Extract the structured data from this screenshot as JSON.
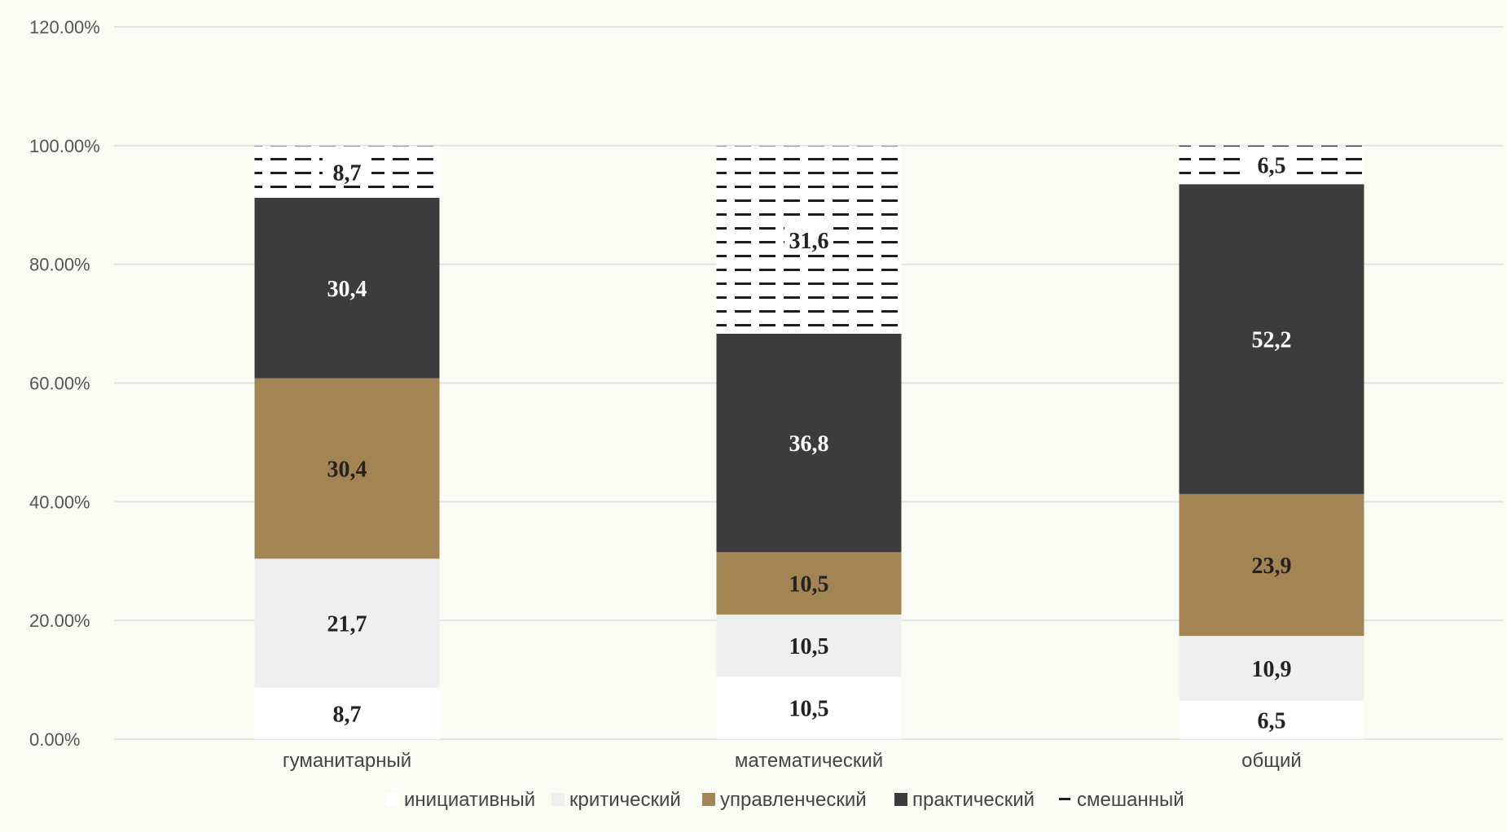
{
  "chart_data": {
    "type": "bar",
    "stacked": true,
    "categories": [
      "гуманитарный",
      "математический",
      "общий"
    ],
    "series": [
      {
        "name": "инициативный",
        "values": [
          8.7,
          10.5,
          6.5
        ],
        "labels": [
          "8,7",
          "10,5",
          "6,5"
        ],
        "color": "#ffffff",
        "pattern": "none"
      },
      {
        "name": "критический",
        "values": [
          21.7,
          10.5,
          10.9
        ],
        "labels": [
          "21,7",
          "10,5",
          "10,9"
        ],
        "color": "#efefef",
        "pattern": "none"
      },
      {
        "name": "управленческий",
        "values": [
          30.4,
          10.5,
          23.9
        ],
        "labels": [
          "30,4",
          "10,5",
          "23,9"
        ],
        "color": "#a28552",
        "pattern": "none"
      },
      {
        "name": "практический",
        "values": [
          30.4,
          36.8,
          52.2
        ],
        "labels": [
          "30,4",
          "36,8",
          "52,2"
        ],
        "color": "#3c3c3c",
        "pattern": "none"
      },
      {
        "name": "смешанный",
        "values": [
          8.7,
          31.6,
          6.5
        ],
        "labels": [
          "8,7",
          "31,6",
          "6,5"
        ],
        "color": "#ffffff",
        "pattern": "dashes"
      }
    ],
    "yticks": [
      "0.00%",
      "20.00%",
      "40.00%",
      "60.00%",
      "80.00%",
      "100.00%",
      "120.00%"
    ],
    "ylim": [
      0,
      120
    ],
    "grid": true,
    "legend_position": "bottom"
  }
}
